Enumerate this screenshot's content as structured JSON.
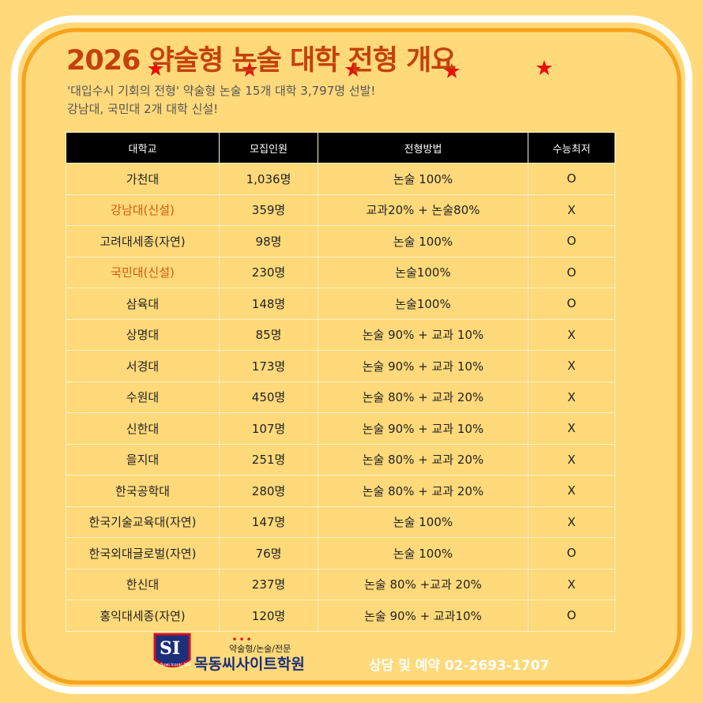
{
  "header": {
    "title": "2026 약술형 논술 대학 전형 개요",
    "subtitle": [
      "'대입수시 기회의 전형' 약술형 논술 15개 대학 3,797명 선발!",
      "강남대, 국민대 2개 대학 신설!"
    ]
  },
  "table": {
    "columns": [
      "대학교",
      "모집인원",
      "전형방법",
      "수능최저"
    ],
    "rows": [
      {
        "cells": [
          "가천대",
          "1,036명",
          "논술 100%",
          "O"
        ]
      },
      {
        "cells": [
          "강남대(신설)",
          "359명",
          "교과20% + 논술80%",
          "X"
        ],
        "color": "#d4580f"
      },
      {
        "cells": [
          "고려대세종(자연)",
          "98명",
          "논술 100%",
          "O"
        ]
      },
      {
        "cells": [
          "국민대(신설)",
          "230명",
          "논술100%",
          "O"
        ],
        "color": "#d4580f"
      },
      {
        "cells": [
          "삼육대",
          "148명",
          "논술100%",
          "O"
        ]
      },
      {
        "cells": [
          "상명대",
          "85명",
          "논술 90% + 교과 10%",
          "X"
        ]
      },
      {
        "cells": [
          "서경대",
          "173명",
          "논술 90% + 교과 10%",
          "X"
        ]
      },
      {
        "cells": [
          "수원대",
          "450명",
          "논술 80% + 교과 20%",
          "X"
        ]
      },
      {
        "cells": [
          "신한대",
          "107명",
          "논술 90% + 교과 10%",
          "X"
        ]
      },
      {
        "cells": [
          "을지대",
          "251명",
          "논술 80% + 교과 20%",
          "X"
        ]
      },
      {
        "cells": [
          "한국공학대",
          "280명",
          "논술 80% + 교과 20%",
          "X"
        ]
      },
      {
        "cells": [
          "한국기술교육대(자연)",
          "147명",
          "논술 100%",
          "X"
        ]
      },
      {
        "cells": [
          "한국외대글로벌(자연)",
          "76명",
          "논술 100%",
          "O"
        ]
      },
      {
        "cells": [
          "한신대",
          "237명",
          "논술 80% +교과 20%",
          "X"
        ]
      },
      {
        "cells": [
          "홍익대세종(자연)",
          "120명",
          "논술 90% + 교과10%",
          "O"
        ]
      }
    ]
  },
  "footer": {
    "logo_mark": "SI",
    "logo_tagline": "Suwi Iconic Site",
    "subject": "약술형/논술/전문",
    "academy": "목동씨사이트학원",
    "contact": "상담 및 예약 02-2693-1707"
  }
}
